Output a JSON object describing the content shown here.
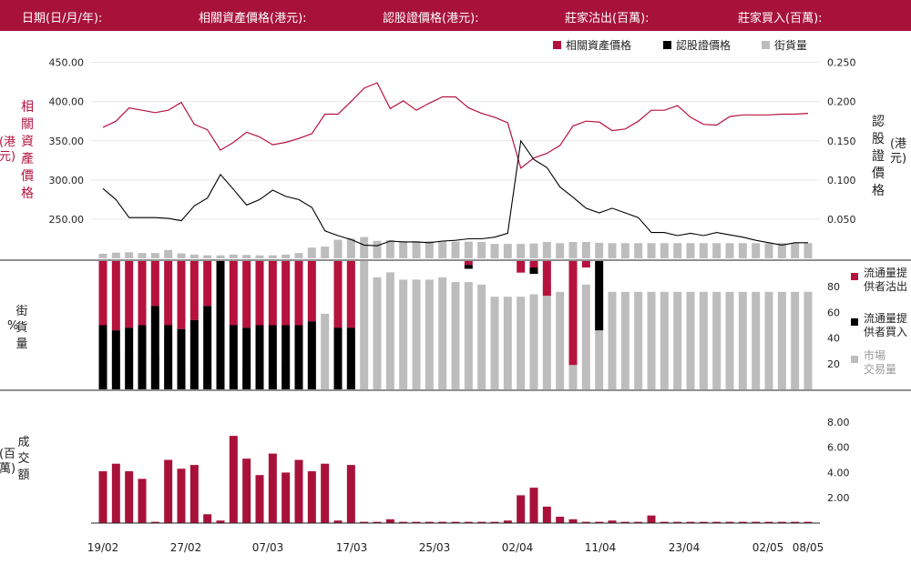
{
  "header": {
    "date_label": "日期(日/月/年):",
    "underlying_label": "相關資產價格(港元):",
    "warrant_label": "認股證價格(港元):",
    "mm_sell_label": "莊家沽出(百萬):",
    "mm_buy_label": "莊家買入(百萬):"
  },
  "colors": {
    "underlying": "#b5123d",
    "warrant": "#000000",
    "outstanding": "#bdbdbd",
    "bar": "#a8123a"
  },
  "chart_data": {
    "type": "bar",
    "x": [
      "19/02",
      "20/02",
      "21/02",
      "22/02",
      "23/02",
      "24/02",
      "27/02",
      "28/02",
      "01/03",
      "02/03",
      "03/03",
      "06/03",
      "07/03",
      "08/03",
      "09/03",
      "10/03",
      "13/03",
      "14/03",
      "15/03",
      "16/03",
      "17/03",
      "20/03",
      "21/03",
      "22/03",
      "23/03",
      "24/03",
      "27/03",
      "28/03",
      "29/03",
      "30/03",
      "31/03",
      "03/04",
      "04/04",
      "06/04",
      "07/04",
      "10/04",
      "11/04",
      "12/04",
      "13/04",
      "14/04",
      "17/04",
      "18/04",
      "19/04",
      "20/04",
      "21/04",
      "24/04",
      "25/04",
      "26/04",
      "27/04",
      "28/04",
      "02/05",
      "03/05",
      "04/05",
      "05/05",
      "08/05"
    ],
    "x_tick_labels": [
      "19/02",
      "27/02",
      "07/03",
      "17/03",
      "25/03",
      "02/04",
      "11/04",
      "23/04",
      "02/05",
      "08/05"
    ],
    "legend": [
      "相關資產價格",
      "認股證價格",
      "街貨量"
    ],
    "left_axis_label": [
      "相",
      "關",
      "資",
      "產",
      "價",
      "格"
    ],
    "left_axis_unit": [
      "(港",
      "元)"
    ],
    "right_axis_label": [
      "認",
      "股",
      "證",
      "價",
      "格"
    ],
    "right_axis_unit": [
      "(港",
      "元)"
    ],
    "price_panel": {
      "left_ticks": [
        "450.00",
        "400.00",
        "350.00",
        "300.00",
        "250.00"
      ],
      "right_ticks": [
        "0.250",
        "0.200",
        "0.150",
        "0.100",
        "0.050"
      ],
      "left_ylim": [
        200,
        460
      ],
      "right_ylim": [
        0,
        0.26
      ],
      "underlying": [
        367,
        375,
        392,
        389,
        386,
        389,
        399,
        371,
        364,
        338,
        348,
        361,
        355,
        345,
        348,
        353,
        359,
        384,
        384,
        400,
        417,
        424,
        391,
        401,
        389,
        398,
        406,
        406,
        392,
        385,
        380,
        373,
        315,
        328,
        334,
        344,
        369,
        375,
        374,
        363,
        365,
        375,
        389,
        389,
        395,
        380,
        371,
        370,
        381,
        383,
        383,
        383,
        384,
        384,
        385
      ],
      "warrant": [
        0.089,
        0.075,
        0.052,
        0.052,
        0.052,
        0.051,
        0.048,
        0.067,
        0.077,
        0.107,
        0.088,
        0.068,
        0.075,
        0.087,
        0.079,
        0.075,
        0.065,
        0.035,
        0.029,
        0.024,
        0.017,
        0.016,
        0.022,
        0.021,
        0.021,
        0.02,
        0.022,
        0.023,
        0.025,
        0.025,
        0.027,
        0.032,
        0.15,
        0.126,
        0.116,
        0.091,
        0.078,
        0.064,
        0.058,
        0.064,
        0.058,
        0.052,
        0.033,
        0.033,
        0.029,
        0.032,
        0.029,
        0.033,
        0.03,
        0.027,
        0.023,
        0.02,
        0.017,
        0.02,
        0.02
      ]
    },
    "outstanding_panel": {
      "ticks": [
        "80",
        "60",
        "40",
        "20"
      ],
      "ylim": [
        0,
        100
      ],
      "unit_label": [
        "%"
      ],
      "axis_label": [
        "街",
        "貨",
        "量"
      ],
      "legend": [
        "流通量提\n供者沽出",
        "流通量提\n供者買入",
        "市場\n交易量"
      ],
      "outstanding_pct": [
        12,
        15,
        16,
        14,
        14,
        22,
        13,
        10,
        8,
        8,
        10,
        9,
        8,
        8,
        10,
        14,
        28,
        31,
        49,
        52,
        56,
        46,
        48,
        45,
        45,
        45,
        46,
        44,
        44,
        43,
        38,
        38,
        38,
        39,
        43,
        40,
        43,
        43,
        41,
        40,
        40,
        40,
        40,
        40,
        40,
        40,
        40,
        40,
        40,
        40,
        40,
        40,
        40,
        40,
        40
      ],
      "lp_sell_pct": [
        50,
        54,
        52,
        50,
        35,
        50,
        53,
        46,
        35,
        0,
        50,
        52,
        50,
        50,
        50,
        50,
        47,
        0,
        52,
        52,
        0,
        0,
        0,
        0,
        0,
        0,
        0,
        0,
        3,
        0,
        0,
        0,
        9,
        5,
        27,
        0,
        81,
        5,
        0,
        0,
        0,
        0,
        0,
        0,
        0,
        0,
        0,
        0,
        0,
        0,
        0,
        0,
        0,
        0,
        0
      ],
      "lp_buy_pct": [
        50,
        46,
        48,
        50,
        65,
        50,
        47,
        54,
        65,
        100,
        50,
        48,
        50,
        50,
        50,
        50,
        53,
        0,
        48,
        48,
        0,
        0,
        0,
        0,
        0,
        0,
        0,
        0,
        3,
        0,
        0,
        0,
        0,
        5,
        0,
        0,
        0,
        0,
        54,
        0,
        0,
        0,
        0,
        0,
        0,
        0,
        0,
        0,
        0,
        0,
        0,
        0,
        0,
        0,
        0
      ]
    },
    "volume_panel": {
      "ticks": [
        "8.00",
        "6.00",
        "4.00",
        "2.00"
      ],
      "ylim": [
        0,
        9
      ],
      "unit_label": [
        "(百",
        "萬)"
      ],
      "axis_label": [
        "成",
        "交",
        "額"
      ],
      "values": [
        4.1,
        4.7,
        4.1,
        3.5,
        0.1,
        5.0,
        4.3,
        4.6,
        0.7,
        0.2,
        6.9,
        5.1,
        3.8,
        5.5,
        4.0,
        5.0,
        4.1,
        4.7,
        0.2,
        4.6,
        0.1,
        0.1,
        0.3,
        0.1,
        0.1,
        0.1,
        0.1,
        0.1,
        0.1,
        0.1,
        0.1,
        0.2,
        2.2,
        2.8,
        1.3,
        0.5,
        0.3,
        0.1,
        0.1,
        0.2,
        0.1,
        0.1,
        0.6,
        0.1,
        0.1,
        0.1,
        0.1,
        0.1,
        0.1,
        0.1,
        0.1,
        0.1,
        0.1,
        0.1,
        0.1
      ]
    }
  }
}
